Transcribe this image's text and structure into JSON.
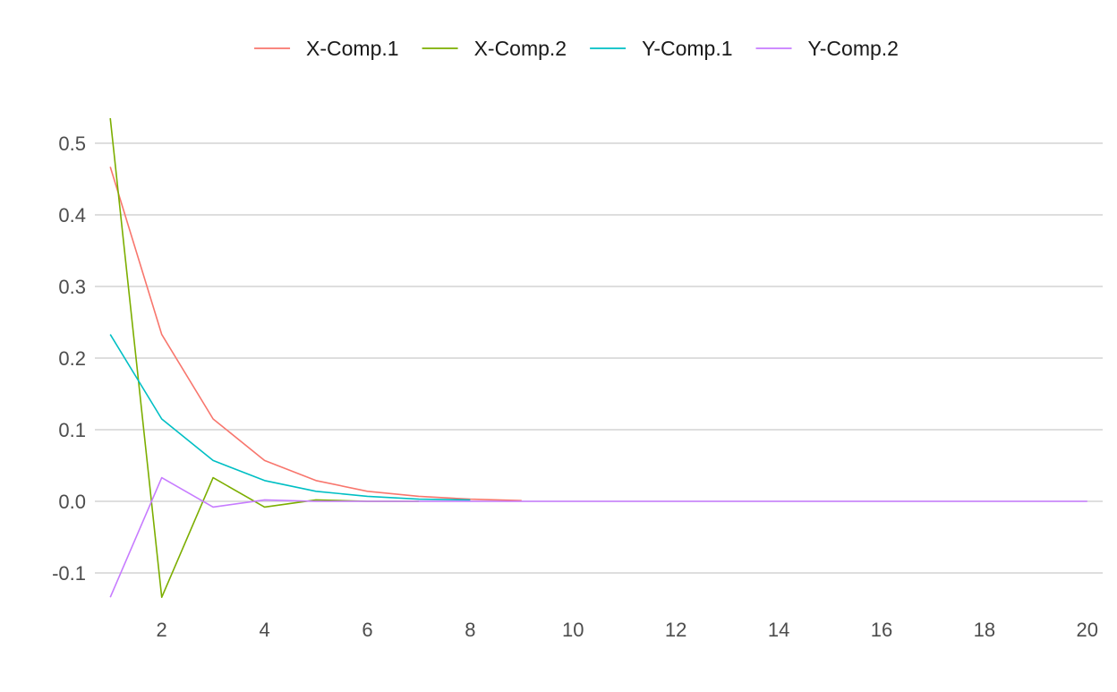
{
  "chart_data": {
    "type": "line",
    "title": "",
    "xlabel": "",
    "ylabel": "",
    "xlim": [
      0.7,
      20.3
    ],
    "ylim": [
      -0.135,
      0.535
    ],
    "x_ticks": [
      2,
      4,
      6,
      8,
      10,
      12,
      14,
      16,
      18,
      20
    ],
    "x_tick_labels": [
      "2",
      "4",
      "6",
      "8",
      "10",
      "12",
      "14",
      "16",
      "18",
      "20"
    ],
    "y_ticks": [
      -0.1,
      0.0,
      0.1,
      0.2,
      0.3,
      0.4,
      0.5
    ],
    "y_tick_labels": [
      "-0.1",
      "0.0",
      "0.1",
      "0.2",
      "0.3",
      "0.4",
      "0.5"
    ],
    "grid": "horizontal",
    "legend_position": "top",
    "series": [
      {
        "name": "X-Comp.1",
        "color": "#F8766D",
        "x": [
          1,
          2,
          3,
          4,
          5,
          6,
          7,
          8,
          9
        ],
        "values": [
          0.467,
          0.233,
          0.115,
          0.057,
          0.029,
          0.014,
          0.007,
          0.003,
          0.001
        ]
      },
      {
        "name": "X-Comp.2",
        "color": "#7CAE00",
        "x": [
          1,
          2,
          3,
          4,
          5,
          6,
          7
        ],
        "values": [
          0.535,
          -0.134,
          0.033,
          -0.008,
          0.002,
          0.0,
          0.0
        ]
      },
      {
        "name": "Y-Comp.1",
        "color": "#00BFC4",
        "x": [
          1,
          2,
          3,
          4,
          5,
          6,
          7,
          8
        ],
        "values": [
          0.233,
          0.115,
          0.057,
          0.029,
          0.014,
          0.007,
          0.003,
          0.002
        ]
      },
      {
        "name": "Y-Comp.2",
        "color": "#C77CFF",
        "x": [
          1,
          2,
          3,
          4,
          5,
          6,
          7,
          8,
          9,
          10,
          11,
          12,
          13,
          14,
          15,
          16,
          17,
          18,
          19,
          20
        ],
        "values": [
          -0.134,
          0.033,
          -0.008,
          0.002,
          0.0,
          0.0,
          0.0,
          0.0,
          0.0,
          0.0,
          0.0,
          0.0,
          0.0,
          0.0,
          0.0,
          0.0,
          0.0,
          0.0,
          0.0,
          0.0
        ]
      }
    ]
  }
}
